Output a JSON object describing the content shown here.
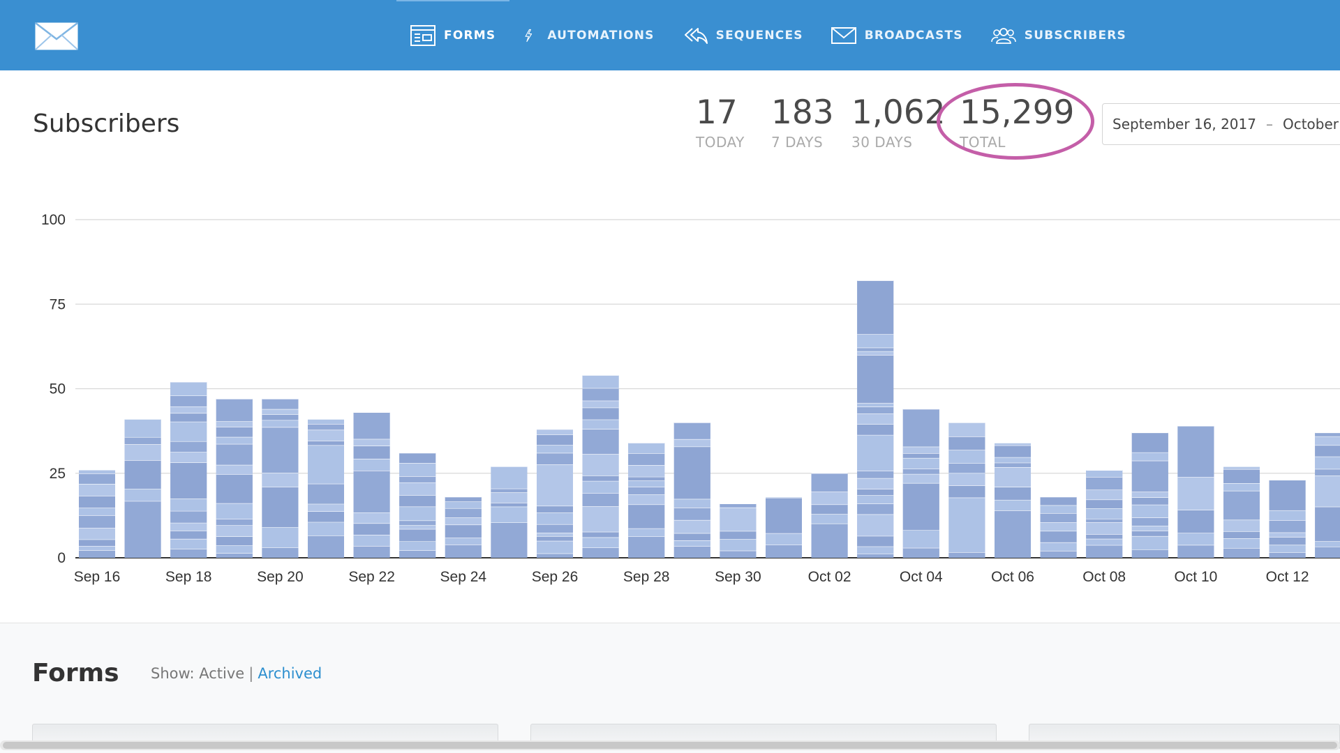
{
  "nav": {
    "logo_icon": "envelope-logo-icon",
    "items": [
      {
        "label": "FORMS",
        "icon": "forms-icon",
        "active": true
      },
      {
        "label": "AUTOMATIONS",
        "icon": "lightning-icon",
        "active": false
      },
      {
        "label": "SEQUENCES",
        "icon": "reply-all-icon",
        "active": false
      },
      {
        "label": "BROADCASTS",
        "icon": "envelope-icon",
        "active": false
      },
      {
        "label": "SUBSCRIBERS",
        "icon": "users-icon",
        "active": false
      }
    ],
    "bg_color": "#3a8fd1"
  },
  "header": {
    "title": "Subscribers",
    "stats": [
      {
        "value": "17",
        "label": "TODAY"
      },
      {
        "value": "183",
        "label": "7 DAYS"
      },
      {
        "value": "1,062",
        "label": "30 DAYS"
      },
      {
        "value": "15,299",
        "label": "TOTAL"
      }
    ],
    "highlight_color": "#c45ea8",
    "date_start": "September 16, 2017",
    "date_sep": "–",
    "date_end": "October"
  },
  "chart_data": {
    "type": "bar",
    "stacked": true,
    "colors": [
      "#92a9d6",
      "#adc2e6",
      "#92a9d6"
    ],
    "categories": [
      "Sep 16",
      "Sep 17",
      "Sep 18",
      "Sep 19",
      "Sep 20",
      "Sep 21",
      "Sep 22",
      "Sep 23",
      "Sep 24",
      "Sep 25",
      "Sep 26",
      "Sep 27",
      "Sep 28",
      "Sep 29",
      "Sep 30",
      "Oct 01",
      "Oct 02",
      "Oct 03",
      "Oct 04",
      "Oct 05",
      "Oct 06",
      "Oct 07",
      "Oct 08",
      "Oct 09",
      "Oct 10",
      "Oct 11",
      "Oct 12",
      "Oct 13"
    ],
    "tick_labels": [
      "Sep 16",
      "Sep 18",
      "Sep 20",
      "Sep 22",
      "Sep 24",
      "Sep 26",
      "Sep 28",
      "Sep 30",
      "Oct 02",
      "Oct 04",
      "Oct 06",
      "Oct 08",
      "Oct 10",
      "Oct 12"
    ],
    "values": [
      26,
      41,
      52,
      47,
      47,
      41,
      43,
      31,
      18,
      27,
      38,
      54,
      34,
      40,
      16,
      18,
      25,
      82,
      44,
      40,
      34,
      18,
      26,
      37,
      39,
      27,
      23,
      37
    ],
    "ylim": [
      0,
      100
    ],
    "yticks": [
      0,
      25,
      50,
      75,
      100
    ],
    "grid": true
  },
  "forms": {
    "title": "Forms",
    "show_label": "Show: Active",
    "separator": "|",
    "archived_link": "Archived"
  }
}
